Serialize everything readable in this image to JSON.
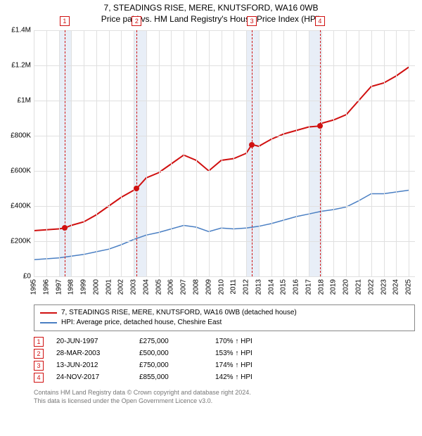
{
  "title": {
    "line1": "7, STEADINGS RISE, MERE, KNUTSFORD, WA16 0WB",
    "line2": "Price paid vs. HM Land Registry's House Price Index (HPI)"
  },
  "chart": {
    "type": "line",
    "xlim": [
      1995,
      2025.5
    ],
    "ylim": [
      0,
      1400000
    ],
    "grid_color": "#e0e0e0",
    "background_color": "#ffffff",
    "y_ticks": [
      {
        "v": 0,
        "label": "£0"
      },
      {
        "v": 200000,
        "label": "£200K"
      },
      {
        "v": 400000,
        "label": "£400K"
      },
      {
        "v": 600000,
        "label": "£600K"
      },
      {
        "v": 800000,
        "label": "£800K"
      },
      {
        "v": 1000000,
        "label": "£1M"
      },
      {
        "v": 1200000,
        "label": "£1.2M"
      },
      {
        "v": 1400000,
        "label": "£1.4M"
      }
    ],
    "x_ticks": [
      1995,
      1996,
      1997,
      1998,
      1999,
      2000,
      2001,
      2002,
      2003,
      2004,
      2005,
      2006,
      2007,
      2008,
      2009,
      2010,
      2011,
      2012,
      2013,
      2014,
      2015,
      2016,
      2017,
      2018,
      2019,
      2020,
      2021,
      2022,
      2023,
      2024,
      2025
    ],
    "shaded_bands": [
      {
        "from": 1997,
        "to": 1998
      },
      {
        "from": 2003,
        "to": 2004
      },
      {
        "from": 2012,
        "to": 2013
      },
      {
        "from": 2017,
        "to": 2018
      }
    ],
    "event_markers": [
      {
        "n": "1",
        "x": 1997.47,
        "y": 275000
      },
      {
        "n": "2",
        "x": 2003.24,
        "y": 500000
      },
      {
        "n": "3",
        "x": 2012.45,
        "y": 750000
      },
      {
        "n": "4",
        "x": 2017.9,
        "y": 855000
      }
    ],
    "series": [
      {
        "name": "property",
        "color": "#d01010",
        "width": 2,
        "points": [
          [
            1995,
            260000
          ],
          [
            1996,
            265000
          ],
          [
            1997,
            270000
          ],
          [
            1997.47,
            275000
          ],
          [
            1998,
            290000
          ],
          [
            1999,
            310000
          ],
          [
            2000,
            350000
          ],
          [
            2001,
            400000
          ],
          [
            2002,
            450000
          ],
          [
            2003,
            490000
          ],
          [
            2003.24,
            500000
          ],
          [
            2004,
            560000
          ],
          [
            2005,
            590000
          ],
          [
            2006,
            640000
          ],
          [
            2007,
            690000
          ],
          [
            2008,
            660000
          ],
          [
            2009,
            600000
          ],
          [
            2010,
            660000
          ],
          [
            2011,
            670000
          ],
          [
            2012,
            700000
          ],
          [
            2012.45,
            750000
          ],
          [
            2013,
            740000
          ],
          [
            2014,
            780000
          ],
          [
            2015,
            810000
          ],
          [
            2016,
            830000
          ],
          [
            2017,
            850000
          ],
          [
            2017.9,
            855000
          ],
          [
            2018,
            870000
          ],
          [
            2019,
            890000
          ],
          [
            2020,
            920000
          ],
          [
            2021,
            1000000
          ],
          [
            2022,
            1080000
          ],
          [
            2023,
            1100000
          ],
          [
            2024,
            1140000
          ],
          [
            2025,
            1190000
          ]
        ]
      },
      {
        "name": "hpi",
        "color": "#4a7fc3",
        "width": 1.5,
        "points": [
          [
            1995,
            95000
          ],
          [
            1996,
            100000
          ],
          [
            1997,
            105000
          ],
          [
            1998,
            115000
          ],
          [
            1999,
            125000
          ],
          [
            2000,
            140000
          ],
          [
            2001,
            155000
          ],
          [
            2002,
            180000
          ],
          [
            2003,
            210000
          ],
          [
            2004,
            235000
          ],
          [
            2005,
            250000
          ],
          [
            2006,
            270000
          ],
          [
            2007,
            290000
          ],
          [
            2008,
            280000
          ],
          [
            2009,
            255000
          ],
          [
            2010,
            275000
          ],
          [
            2011,
            270000
          ],
          [
            2012,
            275000
          ],
          [
            2013,
            285000
          ],
          [
            2014,
            300000
          ],
          [
            2015,
            320000
          ],
          [
            2016,
            340000
          ],
          [
            2017,
            355000
          ],
          [
            2018,
            370000
          ],
          [
            2019,
            380000
          ],
          [
            2020,
            395000
          ],
          [
            2021,
            430000
          ],
          [
            2022,
            470000
          ],
          [
            2023,
            470000
          ],
          [
            2024,
            480000
          ],
          [
            2025,
            490000
          ]
        ]
      }
    ]
  },
  "legend": {
    "items": [
      {
        "color": "#d01010",
        "label": "7, STEADINGS RISE, MERE, KNUTSFORD, WA16 0WB (detached house)"
      },
      {
        "color": "#4a7fc3",
        "label": "HPI: Average price, detached house, Cheshire East"
      }
    ]
  },
  "transactions": [
    {
      "n": "1",
      "date": "20-JUN-1997",
      "price": "£275,000",
      "hpi": "170% ↑ HPI"
    },
    {
      "n": "2",
      "date": "28-MAR-2003",
      "price": "£500,000",
      "hpi": "153% ↑ HPI"
    },
    {
      "n": "3",
      "date": "13-JUN-2012",
      "price": "£750,000",
      "hpi": "174% ↑ HPI"
    },
    {
      "n": "4",
      "date": "24-NOV-2017",
      "price": "£855,000",
      "hpi": "142% ↑ HPI"
    }
  ],
  "footer": {
    "line1": "Contains HM Land Registry data © Crown copyright and database right 2024.",
    "line2": "This data is licensed under the Open Government Licence v3.0."
  }
}
